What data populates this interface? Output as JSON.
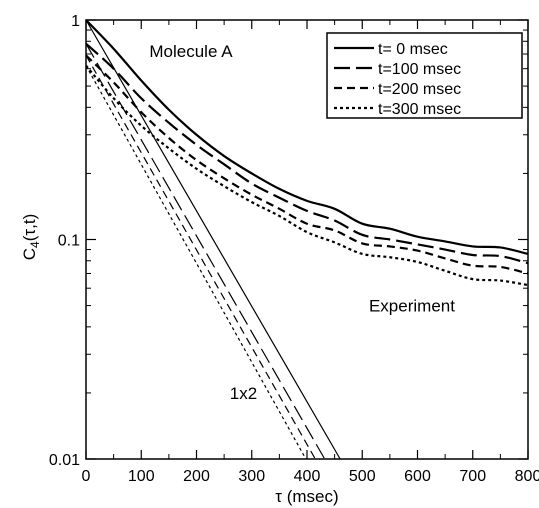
{
  "chart_data": {
    "type": "line",
    "xlabel": "τ (msec)",
    "ylabel_main": "C",
    "ylabel_sub": "4",
    "ylabel_args": "(τ,t)",
    "xlim": [
      0,
      800
    ],
    "ylim": [
      0.01,
      1
    ],
    "y_scale": "log",
    "grid": false,
    "legend_position": "top-right",
    "x_ticks": [
      0,
      100,
      200,
      300,
      400,
      500,
      600,
      700,
      800
    ],
    "x_tick_labels": [
      "0",
      "100",
      "200",
      "300",
      "400",
      "500",
      "600",
      "700",
      "800"
    ],
    "y_ticks": [
      0.01,
      0.1,
      1
    ],
    "y_tick_labels": [
      "0.01",
      "0.1",
      "1"
    ],
    "annotations": [
      {
        "text": "Molecule A",
        "x": 190,
        "y": 0.68
      },
      {
        "text": "Experiment",
        "x": 590,
        "y": 0.047
      },
      {
        "text": "1x2",
        "x": 285,
        "y": 0.0188
      }
    ],
    "series": [
      {
        "name": "t=    0 msec",
        "dash": "solid",
        "x": [
          0,
          50,
          100,
          150,
          200,
          250,
          300,
          350,
          400,
          450,
          500,
          550,
          600,
          650,
          700,
          750,
          800
        ],
        "y": [
          1.0,
          0.74,
          0.53,
          0.39,
          0.3,
          0.24,
          0.2,
          0.17,
          0.15,
          0.138,
          0.118,
          0.112,
          0.103,
          0.098,
          0.093,
          0.092,
          0.086
        ]
      },
      {
        "name": "t=100 msec",
        "dash": "longdash",
        "x": [
          0,
          50,
          100,
          150,
          200,
          250,
          300,
          350,
          400,
          450,
          500,
          550,
          600,
          650,
          700,
          750,
          800
        ],
        "y": [
          0.78,
          0.6,
          0.44,
          0.34,
          0.27,
          0.22,
          0.18,
          0.155,
          0.135,
          0.122,
          0.105,
          0.1,
          0.095,
          0.09,
          0.085,
          0.084,
          0.078
        ]
      },
      {
        "name": "t=200 msec",
        "dash": "dash",
        "x": [
          0,
          50,
          100,
          150,
          200,
          250,
          300,
          350,
          400,
          450,
          500,
          550,
          600,
          650,
          700,
          750,
          800
        ],
        "y": [
          0.69,
          0.52,
          0.38,
          0.29,
          0.23,
          0.19,
          0.16,
          0.138,
          0.118,
          0.11,
          0.096,
          0.093,
          0.089,
          0.082,
          0.076,
          0.075,
          0.07
        ]
      },
      {
        "name": "t=300 msec",
        "dash": "dot",
        "x": [
          0,
          50,
          100,
          150,
          200,
          250,
          300,
          350,
          400,
          450,
          500,
          550,
          600,
          650,
          700,
          750,
          800
        ],
        "y": [
          0.62,
          0.44,
          0.33,
          0.26,
          0.21,
          0.175,
          0.148,
          0.128,
          0.108,
          0.097,
          0.086,
          0.083,
          0.079,
          0.072,
          0.066,
          0.065,
          0.062
        ]
      }
    ],
    "model_lines": [
      {
        "dash": "solid",
        "x": [
          0,
          460
        ],
        "y": [
          1.0,
          0.01
        ]
      },
      {
        "dash": "longdash",
        "x": [
          0,
          432
        ],
        "y": [
          0.78,
          0.01
        ]
      },
      {
        "dash": "dash",
        "x": [
          0,
          415
        ],
        "y": [
          0.69,
          0.01
        ]
      },
      {
        "dash": "dot",
        "x": [
          0,
          398
        ],
        "y": [
          0.62,
          0.01
        ]
      }
    ]
  }
}
